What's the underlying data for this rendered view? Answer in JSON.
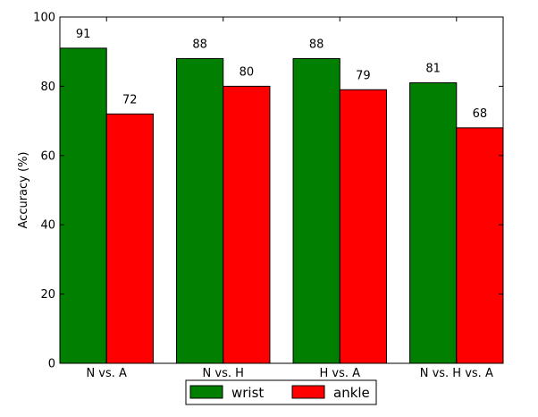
{
  "chart_data": {
    "type": "bar",
    "title": "",
    "xlabel": "",
    "ylabel": "Accuracy (%)",
    "ylim": [
      0,
      100
    ],
    "yticks": [
      0,
      20,
      40,
      60,
      80,
      100
    ],
    "categories": [
      "N vs. A",
      "N vs. H",
      "H vs. A",
      "N vs. H vs. A"
    ],
    "series": [
      {
        "name": "wrist",
        "color": "#007f00",
        "values": [
          91,
          88,
          88,
          81
        ],
        "labels": [
          "91",
          "88",
          "88",
          "81"
        ]
      },
      {
        "name": "ankle",
        "color": "#ff0000",
        "values": [
          72,
          80,
          79,
          68
        ],
        "labels": [
          "72",
          "80",
          "79",
          "68"
        ]
      }
    ],
    "grid": false,
    "legend": "bottom-center"
  }
}
